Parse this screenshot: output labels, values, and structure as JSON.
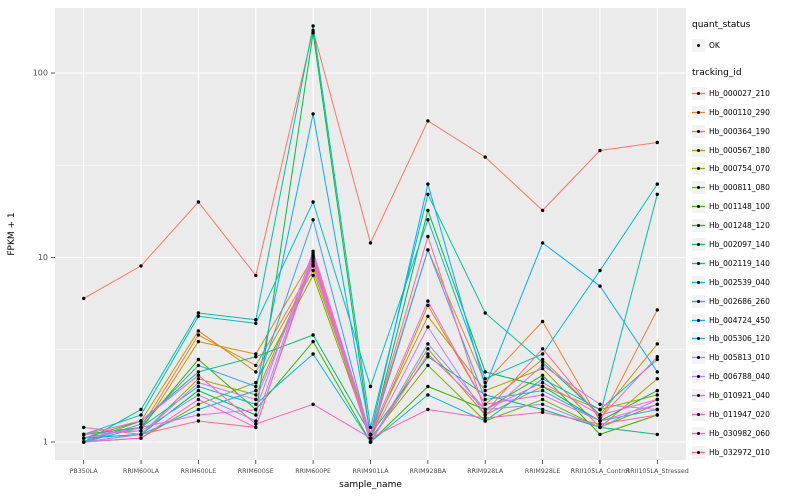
{
  "legend": {
    "quant_title": "quant_status",
    "quant_items": [
      {
        "label": "OK"
      }
    ],
    "tracking_title": "tracking_id"
  },
  "chart_data": {
    "type": "line",
    "x_type": "categorical",
    "y_scale": "log10",
    "title": "",
    "xlabel": "sample_name",
    "ylabel": "FPKM + 1",
    "ylim": [
      1,
      200
    ],
    "y_ticks": [
      1,
      10,
      100
    ],
    "grid": true,
    "legend_position": "right",
    "panel_background": "#EBEBEB",
    "gridline_color": "#FFFFFF",
    "point_color": "#000000",
    "categories": [
      "PB350LA",
      "RRIM600LA",
      "RRIM600LE",
      "RRIM600SE",
      "RRIM600PE",
      "RRIM901LA",
      "RRIM928BA",
      "RRIM928LA",
      "RRIM928LE",
      "RRII105LA_Control",
      "RRII105LA_Stressed"
    ],
    "series": [
      {
        "name": "Hb_000027_210",
        "color": "#F8766D",
        "values": [
          6,
          9,
          20,
          8,
          170,
          12,
          55,
          35,
          18,
          38,
          42
        ]
      },
      {
        "name": "Hb_000110_290",
        "color": "#EA8331",
        "values": [
          1.05,
          1.2,
          3.8,
          2.6,
          9,
          1.1,
          11,
          2.1,
          4.5,
          1.3,
          5.2
        ]
      },
      {
        "name": "Hb_000364_190",
        "color": "#D89000",
        "values": [
          1.1,
          1.15,
          3.5,
          3.0,
          10,
          1.05,
          5.5,
          1.6,
          2.8,
          1.4,
          3.4
        ]
      },
      {
        "name": "Hb_000567_180",
        "color": "#C09B00",
        "values": [
          1.0,
          1.3,
          4.0,
          2.4,
          8.5,
          1.1,
          4.8,
          1.9,
          2.5,
          1.2,
          2.2
        ]
      },
      {
        "name": "Hb_000754_070",
        "color": "#A3A500",
        "values": [
          1.05,
          1.1,
          2.2,
          1.8,
          9.5,
          1.0,
          3.2,
          1.4,
          2.0,
          1.5,
          1.8
        ]
      },
      {
        "name": "Hb_000811_080",
        "color": "#7CAE00",
        "values": [
          1.0,
          1.05,
          1.6,
          2.1,
          8,
          1.05,
          2.6,
          1.3,
          1.7,
          1.2,
          1.6
        ]
      },
      {
        "name": "Hb_001148_100",
        "color": "#39B600",
        "values": [
          1.1,
          1.2,
          2.8,
          1.5,
          3.5,
          1.0,
          2.0,
          1.5,
          2.3,
          1.1,
          1.4
        ]
      },
      {
        "name": "Hb_001248_120",
        "color": "#00BB4E",
        "values": [
          1.0,
          1.1,
          1.9,
          1.4,
          165,
          1.05,
          18,
          2.4,
          2.0,
          1.3,
          1.9
        ]
      },
      {
        "name": "Hb_002097_140",
        "color": "#00BF7D",
        "values": [
          1.05,
          1.3,
          2.4,
          2.9,
          3.8,
          1.1,
          2.9,
          1.8,
          1.5,
          1.2,
          1.1
        ]
      },
      {
        "name": "Hb_002119_140",
        "color": "#00C1A3",
        "values": [
          1.0,
          1.5,
          5.0,
          4.6,
          180,
          1.2,
          22,
          5.0,
          2.7,
          1.4,
          22
        ]
      },
      {
        "name": "Hb_002539_040",
        "color": "#00BFC4",
        "values": [
          1.1,
          1.4,
          4.8,
          4.4,
          20,
          2.0,
          16,
          2.2,
          3.0,
          8.5,
          25
        ]
      },
      {
        "name": "Hb_002686_260",
        "color": "#00BAE0",
        "values": [
          1.0,
          1.2,
          2.0,
          1.6,
          3.0,
          1.0,
          1.8,
          1.3,
          2.2,
          1.5,
          2.8
        ]
      },
      {
        "name": "Hb_004724_450",
        "color": "#00B0F6",
        "values": [
          1.05,
          1.1,
          1.5,
          1.9,
          60,
          1.1,
          25,
          2.0,
          12,
          7,
          2.4
        ]
      },
      {
        "name": "Hb_005306_120",
        "color": "#35A2FF",
        "values": [
          1.0,
          1.25,
          2.6,
          2.0,
          16,
          1.05,
          11,
          1.7,
          1.9,
          1.3,
          1.5
        ]
      },
      {
        "name": "Hb_005813_010",
        "color": "#9590FF",
        "values": [
          1.1,
          1.15,
          1.8,
          1.3,
          10.5,
          1.0,
          3.4,
          1.5,
          1.6,
          1.2,
          1.7
        ]
      },
      {
        "name": "Hb_006788_040",
        "color": "#C77CFF",
        "values": [
          1.0,
          1.1,
          2.1,
          1.7,
          9.2,
          1.05,
          4.2,
          1.4,
          2.6,
          1.6,
          1.5
        ]
      },
      {
        "name": "Hb_010921_040",
        "color": "#E76BF3",
        "values": [
          1.05,
          1.2,
          1.4,
          1.5,
          10.8,
          1.1,
          5.8,
          1.6,
          1.8,
          1.3,
          1.6
        ]
      },
      {
        "name": "Hb_011947_020",
        "color": "#FA62DB",
        "values": [
          1.0,
          1.05,
          1.7,
          1.2,
          9.8,
          1.0,
          3.0,
          1.5,
          2.1,
          1.4,
          1.7
        ]
      },
      {
        "name": "Hb_030982_060",
        "color": "#FF62BC",
        "values": [
          1.1,
          1.3,
          2.3,
          1.25,
          1.6,
          1.05,
          1.5,
          1.35,
          1.45,
          1.25,
          1.4
        ]
      },
      {
        "name": "Hb_032972_010",
        "color": "#FF6A98",
        "values": [
          1.2,
          1.1,
          1.3,
          1.2,
          10.2,
          1.1,
          13,
          1.45,
          3.2,
          1.35,
          2.9
        ]
      }
    ]
  }
}
